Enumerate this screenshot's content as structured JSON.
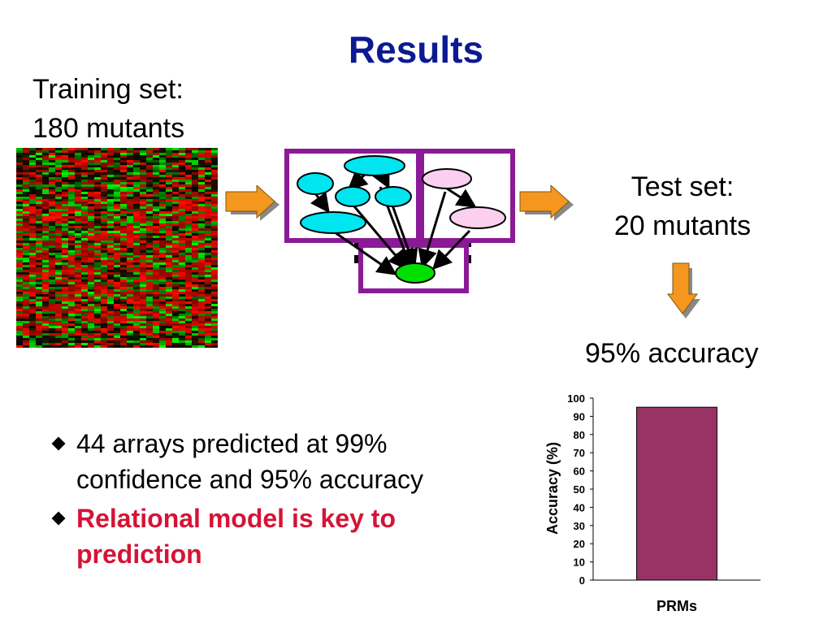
{
  "slide": {
    "title": "Results",
    "training_set": {
      "line1": "Training set:",
      "line2": "180 mutants"
    },
    "test_set": {
      "line1": "Test set:",
      "line2": "20 mutants"
    },
    "accuracy_label": "95% accuracy",
    "bullets": [
      {
        "text": "44 arrays predicted at 99% confidence and 95% accuracy",
        "emphasis": false
      },
      {
        "text": "Relational model is key to prediction",
        "emphasis": true
      }
    ],
    "colors": {
      "title": "#0b1a92",
      "emphasis_text": "#d41436",
      "model_frame": "#8b1a96",
      "node_cyan": "#00e5f0",
      "node_pink": "#fbd0ef",
      "node_green": "#00e000",
      "arrow_orange": "#f5961e",
      "bar": "#993366"
    },
    "icons": [
      "heatmap-image",
      "right-arrow-icon",
      "down-arrow-icon",
      "bullet-diamond-icon"
    ]
  },
  "chart_data": {
    "type": "bar",
    "categories": [
      "PRMs"
    ],
    "values": [
      95
    ],
    "xlabel": "",
    "ylabel": "Accuracy (%)",
    "ylim": [
      0,
      100
    ],
    "yticks": [
      0,
      10,
      20,
      30,
      40,
      50,
      60,
      70,
      80,
      90,
      100
    ],
    "grid": false,
    "legend": "none"
  }
}
